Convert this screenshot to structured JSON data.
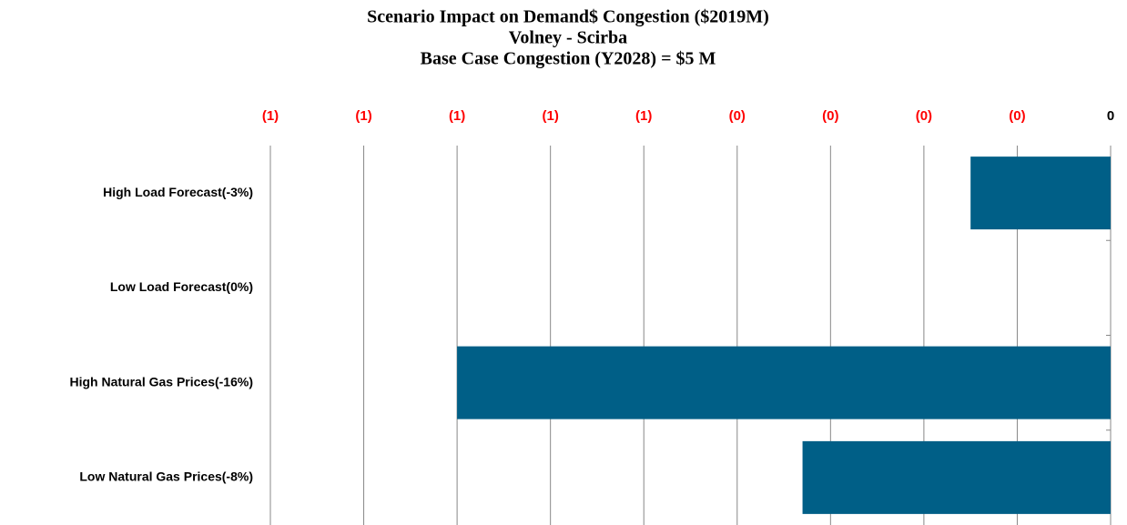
{
  "chart_data": {
    "type": "hbar",
    "title": [
      "Scenario Impact on Demand$ Congestion ($2019M)",
      "Volney - Scirba",
      "Base Case Congestion (Y2028) = $5 M"
    ],
    "categories": [
      "High Load Forecast(-3%)",
      "Low Load Forecast(0%)",
      "High Natural Gas Prices(-16%)",
      "Low Natural Gas Prices(-8%)"
    ],
    "values": [
      -0.15,
      0,
      -0.7,
      -0.33
    ],
    "color": "#005f87",
    "xlim": [
      -0.9,
      0
    ],
    "xticks": [
      {
        "value": -0.9,
        "label": "(1)"
      },
      {
        "value": -0.8,
        "label": "(1)"
      },
      {
        "value": -0.7,
        "label": "(1)"
      },
      {
        "value": -0.6,
        "label": "(1)"
      },
      {
        "value": -0.5,
        "label": "(1)"
      },
      {
        "value": -0.4,
        "label": "(0)"
      },
      {
        "value": -0.3,
        "label": "(0)"
      },
      {
        "value": -0.2,
        "label": "(0)"
      },
      {
        "value": -0.1,
        "label": "(0)"
      },
      0
    ],
    "negative_color": "#ff0000",
    "grid": true
  }
}
